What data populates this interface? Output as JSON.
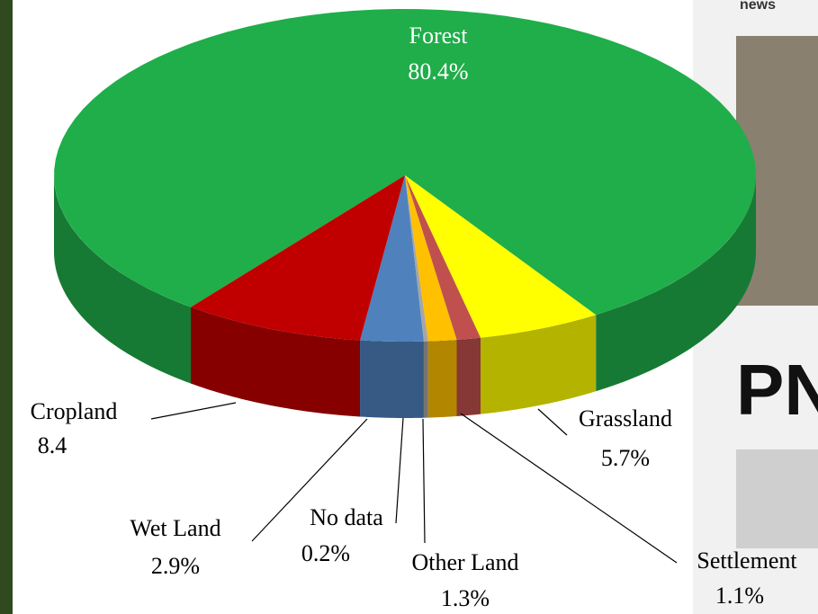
{
  "chart_data": {
    "type": "pie",
    "categories": [
      "Forest",
      "Grassland",
      "Settlement",
      "Other Land",
      "No data",
      "Wet Land",
      "Cropland"
    ],
    "values": [
      80.4,
      5.7,
      1.1,
      1.3,
      0.2,
      2.9,
      8.4
    ],
    "value_labels": [
      "80.4%",
      "5.7%",
      "1.1%",
      "1.3%",
      "0.2%",
      "2.9%",
      "8.4"
    ],
    "colors": [
      "#1fae4a",
      "#ffff00",
      "#c0504d",
      "#ffc000",
      "#a6a6a6",
      "#4f81bd",
      "#c00000"
    ]
  },
  "background": {
    "header": "news",
    "headline": "PN"
  }
}
